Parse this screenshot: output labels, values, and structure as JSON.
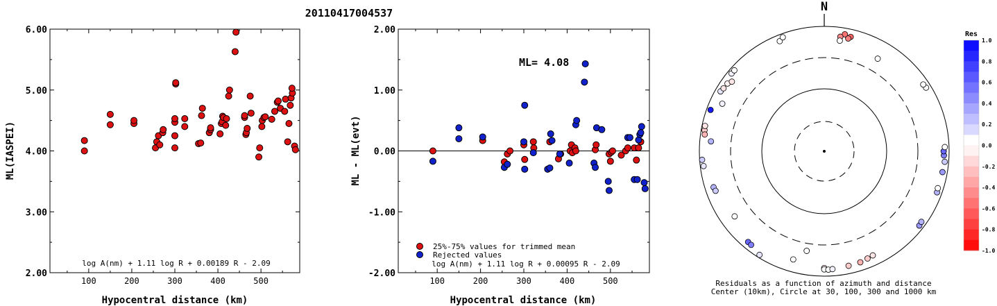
{
  "title": "20110417004537",
  "panel1": {
    "ylabel": "ML(IASPEI)",
    "xlabel": "Hypocentral distance (km)",
    "formula": "log A(nm) + 1.11 log R + 0.00189 R - 2.09",
    "xticks": [
      "100",
      "200",
      "300",
      "400",
      "500"
    ],
    "yticks": [
      "2.00",
      "3.00",
      "4.00",
      "5.00",
      "6.00"
    ]
  },
  "panel2": {
    "ylabel": "ML - ML(evt)",
    "xlabel": "Hypocentral distance (km)",
    "formula": "log A(nm) + 1.11 log R + 0.00095 R - 2.09",
    "ml_label": "ML= 4.08",
    "legend_red": "25%-75% values for trimmed mean",
    "legend_blue": "Rejected values",
    "xticks": [
      "100",
      "200",
      "300",
      "400",
      "500"
    ],
    "yticks": [
      "-2.00",
      "-1.00",
      "0.00",
      "1.00",
      "2.00"
    ]
  },
  "panel3": {
    "north": "N",
    "caption1": "Residuals as a function of azimuth and distance",
    "caption2": "Center (10km), Circle at 30, 100, 300 and 1000 km",
    "colorbar_title": "Res",
    "colorbar_ticks": [
      "1.0",
      "0.8",
      "0.6",
      "0.4",
      "0.2",
      "0.0",
      "-0.2",
      "-0.4",
      "-0.6",
      "-0.8",
      "-1.0"
    ]
  },
  "colors": {
    "red": "#dd1111",
    "blue": "#1122cc"
  },
  "chart_data": [
    {
      "type": "scatter",
      "xlabel": "Hypocentral distance (km)",
      "ylabel": "ML(IASPEI)",
      "xlim": [
        10,
        590
      ],
      "ylim": [
        2.0,
        6.0
      ],
      "series": [
        {
          "color": "red",
          "points": [
            [
              90,
              4.0
            ],
            [
              90,
              4.17
            ],
            [
              150,
              4.43
            ],
            [
              150,
              4.6
            ],
            [
              205,
              4.45
            ],
            [
              205,
              4.5
            ],
            [
              255,
              4.05
            ],
            [
              258,
              4.15
            ],
            [
              262,
              4.25
            ],
            [
              265,
              4.1
            ],
            [
              272,
              4.3
            ],
            [
              273,
              4.35
            ],
            [
              300,
              4.05
            ],
            [
              300,
              4.25
            ],
            [
              300,
              4.47
            ],
            [
              300,
              4.53
            ],
            [
              302,
              5.1
            ],
            [
              302,
              5.12
            ],
            [
              323,
              4.4
            ],
            [
              323,
              4.53
            ],
            [
              355,
              4.12
            ],
            [
              360,
              4.13
            ],
            [
              362,
              4.58
            ],
            [
              364,
              4.7
            ],
            [
              380,
              4.3
            ],
            [
              383,
              4.35
            ],
            [
              383,
              4.38
            ],
            [
              405,
              4.28
            ],
            [
              408,
              4.45
            ],
            [
              410,
              4.48
            ],
            [
              411,
              4.57
            ],
            [
              413,
              4.55
            ],
            [
              418,
              4.42
            ],
            [
              420,
              4.53
            ],
            [
              425,
              4.9
            ],
            [
              427,
              5.0
            ],
            [
              440,
              5.63
            ],
            [
              442,
              5.95
            ],
            [
              462,
              4.55
            ],
            [
              462,
              4.58
            ],
            [
              465,
              4.27
            ],
            [
              466,
              4.3
            ],
            [
              468,
              4.37
            ],
            [
              475,
              4.9
            ],
            [
              477,
              4.62
            ],
            [
              495,
              3.9
            ],
            [
              497,
              4.05
            ],
            [
              502,
              4.4
            ],
            [
              503,
              4.5
            ],
            [
              507,
              4.55
            ],
            [
              510,
              4.56
            ],
            [
              525,
              4.52
            ],
            [
              532,
              4.65
            ],
            [
              538,
              4.8
            ],
            [
              540,
              4.82
            ],
            [
              545,
              4.7
            ],
            [
              555,
              4.65
            ],
            [
              557,
              4.85
            ],
            [
              562,
              4.15
            ],
            [
              565,
              4.45
            ],
            [
              568,
              4.75
            ],
            [
              570,
              4.87
            ],
            [
              573,
              4.95
            ],
            [
              572,
              5.03
            ],
            [
              578,
              4.08
            ],
            [
              580,
              4.02
            ]
          ]
        }
      ]
    },
    {
      "type": "scatter",
      "xlabel": "Hypocentral distance (km)",
      "ylabel": "ML - ML(evt)",
      "xlim": [
        10,
        590
      ],
      "ylim": [
        -2.0,
        2.0
      ],
      "series": [
        {
          "name": "25%-75% values for trimmed mean",
          "color": "red",
          "points": [
            [
              90,
              0.0
            ],
            [
              205,
              0.17
            ],
            [
              255,
              -0.18
            ],
            [
              262,
              -0.05
            ],
            [
              268,
              0.0
            ],
            [
              300,
              0.1
            ],
            [
              302,
              -0.14
            ],
            [
              322,
              0.15
            ],
            [
              323,
              0.05
            ],
            [
              360,
              0.15
            ],
            [
              380,
              -0.13
            ],
            [
              385,
              -0.05
            ],
            [
              407,
              0.0
            ],
            [
              410,
              0.1
            ],
            [
              412,
              -0.03
            ],
            [
              418,
              0.05
            ],
            [
              420,
              0.0
            ],
            [
              465,
              0.02
            ],
            [
              467,
              0.1
            ],
            [
              497,
              -0.05
            ],
            [
              500,
              -0.17
            ],
            [
              502,
              -0.02
            ],
            [
              505,
              0.0
            ],
            [
              525,
              -0.07
            ],
            [
              535,
              0.0
            ],
            [
              540,
              0.05
            ],
            [
              555,
              0.05
            ],
            [
              560,
              -0.15
            ],
            [
              565,
              0.05
            ],
            [
              570,
              0.15
            ]
          ]
        },
        {
          "name": "Rejected values",
          "color": "blue",
          "points": [
            [
              90,
              -0.17
            ],
            [
              150,
              0.2
            ],
            [
              150,
              0.38
            ],
            [
              205,
              0.23
            ],
            [
              255,
              -0.27
            ],
            [
              262,
              -0.22
            ],
            [
              300,
              0.15
            ],
            [
              302,
              -0.3
            ],
            [
              302,
              0.75
            ],
            [
              322,
              -0.03
            ],
            [
              355,
              -0.3
            ],
            [
              360,
              -0.28
            ],
            [
              362,
              0.28
            ],
            [
              365,
              0.17
            ],
            [
              383,
              -0.05
            ],
            [
              405,
              -0.2
            ],
            [
              420,
              0.43
            ],
            [
              422,
              0.5
            ],
            [
              440,
              1.13
            ],
            [
              442,
              1.43
            ],
            [
              462,
              -0.2
            ],
            [
              465,
              -0.27
            ],
            [
              468,
              0.38
            ],
            [
              480,
              0.35
            ],
            [
              495,
              -0.5
            ],
            [
              497,
              -0.65
            ],
            [
              540,
              0.22
            ],
            [
              545,
              0.22
            ],
            [
              555,
              -0.47
            ],
            [
              562,
              -0.47
            ],
            [
              565,
              0.18
            ],
            [
              568,
              0.27
            ],
            [
              570,
              0.3
            ],
            [
              572,
              0.4
            ],
            [
              578,
              -0.52
            ],
            [
              580,
              -0.62
            ]
          ]
        }
      ]
    }
  ],
  "azimuth_plot": {
    "circles_km": [
      30,
      100,
      300,
      1000
    ],
    "stations": [
      {
        "az": 13,
        "dist": 750,
        "res": -0.6
      },
      {
        "az": 12,
        "dist": 690,
        "res": -0.5
      },
      {
        "az": 10,
        "dist": 790,
        "res": -0.55
      },
      {
        "az": 8,
        "dist": 700,
        "res": -0.45
      },
      {
        "az": 338,
        "dist": 790,
        "res": 0.0
      },
      {
        "az": 340,
        "dist": 870,
        "res": 0.0
      },
      {
        "az": 8,
        "dist": 600,
        "res": 0.0
      },
      {
        "az": 300,
        "dist": 820,
        "res": 0.1
      },
      {
        "az": 302,
        "dist": 790,
        "res": -0.1
      },
      {
        "az": 305,
        "dist": 770,
        "res": -0.05
      },
      {
        "az": 307,
        "dist": 700,
        "res": -0.1
      },
      {
        "az": 310,
        "dist": 860,
        "res": 0.05
      },
      {
        "az": 312,
        "dist": 860,
        "res": 0.0
      },
      {
        "az": 295,
        "dist": 620,
        "res": 0.05
      },
      {
        "az": 290,
        "dist": 860,
        "res": 0.9
      },
      {
        "az": 280,
        "dist": 880,
        "res": -0.2
      },
      {
        "az": 282,
        "dist": 890,
        "res": -0.1
      },
      {
        "az": 278,
        "dist": 850,
        "res": -0.3
      },
      {
        "az": 275,
        "dist": 650,
        "res": 0.3
      },
      {
        "az": 266,
        "dist": 910,
        "res": 0.2
      },
      {
        "az": 263,
        "dist": 880,
        "res": 0.1
      },
      {
        "az": 252,
        "dist": 720,
        "res": 0.3
      },
      {
        "az": 250,
        "dist": 700,
        "res": 0.2
      },
      {
        "az": 234,
        "dist": 580,
        "res": 0.0
      },
      {
        "az": 220,
        "dist": 780,
        "res": 0.6
      },
      {
        "az": 218,
        "dist": 790,
        "res": 0.5
      },
      {
        "az": 212,
        "dist": 900,
        "res": 0.1
      },
      {
        "az": 196,
        "dist": 620,
        "res": 0.0
      },
      {
        "az": 180,
        "dist": 730,
        "res": -0.1
      },
      {
        "az": 180,
        "dist": 770,
        "res": 0.0
      },
      {
        "az": 178,
        "dist": 780,
        "res": 0.0
      },
      {
        "az": 176,
        "dist": 770,
        "res": 0.05
      },
      {
        "az": 168,
        "dist": 740,
        "res": -0.2
      },
      {
        "az": 162,
        "dist": 730,
        "res": -0.3
      },
      {
        "az": 158,
        "dist": 700,
        "res": -0.2
      },
      {
        "az": 155,
        "dist": 680,
        "res": -0.1
      },
      {
        "az": 128,
        "dist": 850,
        "res": 0.4
      },
      {
        "az": 126,
        "dist": 830,
        "res": 0.3
      },
      {
        "az": 110,
        "dist": 830,
        "res": 0.3
      },
      {
        "az": 108,
        "dist": 810,
        "res": 0.0
      },
      {
        "az": 100,
        "dist": 830,
        "res": 0.4
      },
      {
        "az": 95,
        "dist": 860,
        "res": 0.2
      },
      {
        "az": 92,
        "dist": 820,
        "res": 0.5
      },
      {
        "az": 90,
        "dist": 810,
        "res": 0.6
      },
      {
        "az": 88,
        "dist": 850,
        "res": 0.0
      },
      {
        "az": 58,
        "dist": 830,
        "res": 0.0
      },
      {
        "az": 56,
        "dist": 810,
        "res": 0.0
      },
      {
        "az": 30,
        "dist": 500,
        "res": 0.0
      },
      {
        "az": 190,
        "dist": 400,
        "res": 0.0
      }
    ]
  }
}
